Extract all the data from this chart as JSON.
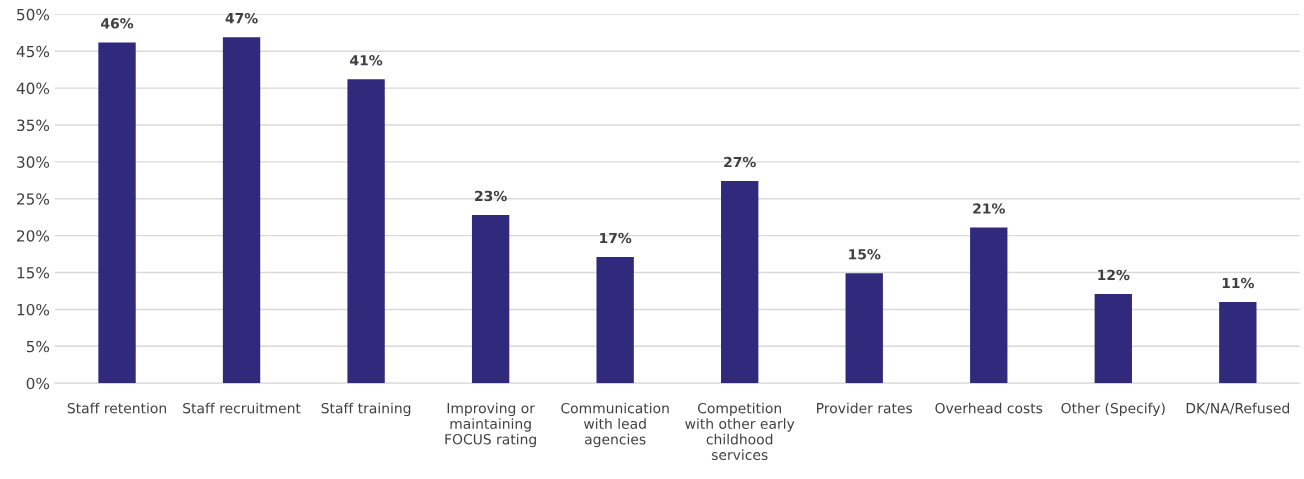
{
  "chart_data": {
    "type": "bar",
    "categories": [
      "Staff retention",
      "Staff recruitment",
      "Staff training",
      "Improving or\nmaintaining\nFOCUS rating",
      "Communication\nwith lead\nagencies",
      "Competition\nwith other early\nchildhood\nservices",
      "Provider rates",
      "Overhead costs",
      "Other (Specify)",
      "DK/NA/Refused"
    ],
    "values": [
      46.2,
      46.9,
      41.2,
      22.8,
      17.1,
      27.4,
      14.9,
      21.1,
      12.1,
      11.0
    ],
    "value_labels": [
      "46%",
      "47%",
      "41%",
      "23%",
      "17%",
      "27%",
      "15%",
      "21%",
      "12%",
      "11%"
    ],
    "color": "#312a7c",
    "ylim": [
      0,
      50
    ],
    "yticks": [
      {
        "value": 0,
        "label": "0%"
      },
      {
        "value": 5,
        "label": "5%"
      },
      {
        "value": 10,
        "label": "10%"
      },
      {
        "value": 15,
        "label": "15%"
      },
      {
        "value": 20,
        "label": "20%"
      },
      {
        "value": 25,
        "label": "25%"
      },
      {
        "value": 30,
        "label": "30%"
      },
      {
        "value": 35,
        "label": "35%"
      },
      {
        "value": 40,
        "label": "40%"
      },
      {
        "value": 45,
        "label": "45%"
      },
      {
        "value": 50,
        "label": "50%"
      }
    ],
    "grid": "y"
  }
}
